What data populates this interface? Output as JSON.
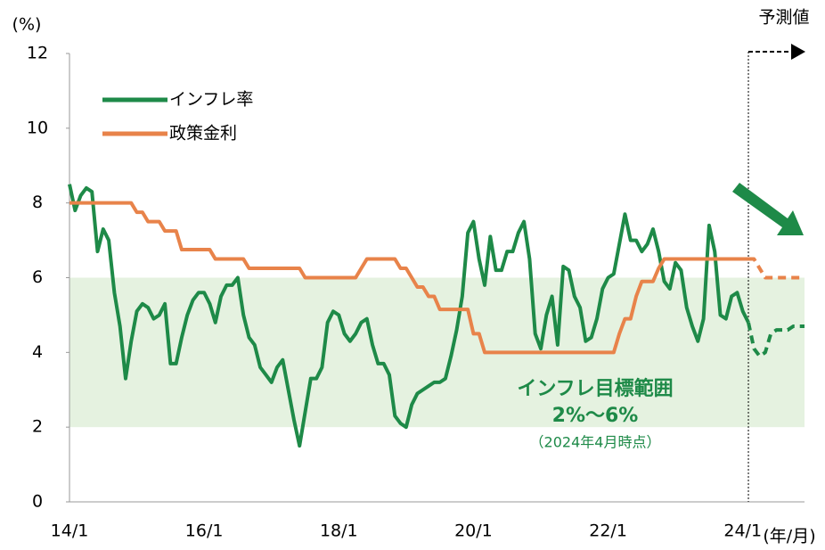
{
  "chart_data": {
    "type": "line",
    "y_unit": "(%)",
    "x_unit": "(年/月)",
    "annotations": {
      "forecast": "予測値",
      "band_title": "インフレ目標範囲",
      "band_range": "2%〜6%",
      "band_note": "（2024年4月時点）"
    },
    "band": [
      2,
      6
    ],
    "band_color": "#e5f2e0",
    "ylim": [
      0,
      12
    ],
    "yticks": [
      0,
      2,
      4,
      6,
      8,
      10,
      12
    ],
    "categories": [
      "14/1",
      null,
      null,
      null,
      null,
      null,
      null,
      null,
      null,
      null,
      null,
      null,
      null,
      null,
      null,
      null,
      null,
      null,
      null,
      null,
      null,
      null,
      null,
      null,
      "16/1",
      null,
      null,
      null,
      null,
      null,
      null,
      null,
      null,
      null,
      null,
      null,
      null,
      null,
      null,
      null,
      null,
      null,
      null,
      null,
      null,
      null,
      null,
      null,
      "18/1",
      null,
      null,
      null,
      null,
      null,
      null,
      null,
      null,
      null,
      null,
      null,
      null,
      null,
      null,
      null,
      null,
      null,
      null,
      null,
      null,
      null,
      null,
      null,
      "20/1",
      null,
      null,
      null,
      null,
      null,
      null,
      null,
      null,
      null,
      null,
      null,
      null,
      null,
      null,
      null,
      null,
      null,
      null,
      null,
      null,
      null,
      null,
      null,
      "22/1",
      null,
      null,
      null,
      null,
      null,
      null,
      null,
      null,
      null,
      null,
      null,
      null,
      null,
      null,
      null,
      null,
      null,
      null,
      null,
      null,
      null,
      null,
      null,
      "24/1",
      null,
      null,
      null,
      null,
      null,
      null,
      null,
      null,
      null,
      null,
      null
    ],
    "series": [
      {
        "name": "インフレ率",
        "color": "#1e8a48",
        "values": [
          8.5,
          7.8,
          8.2,
          8.4,
          8.3,
          6.7,
          7.3,
          7.0,
          5.6,
          4.7,
          3.3,
          4.3,
          5.1,
          5.3,
          5.2,
          4.9,
          5.0,
          5.3,
          3.7,
          3.7,
          4.4,
          5.0,
          5.4,
          5.6,
          5.6,
          5.3,
          4.8,
          5.5,
          5.8,
          5.8,
          6.0,
          5.0,
          4.4,
          4.2,
          3.6,
          3.4,
          3.2,
          3.6,
          3.8,
          3.0,
          2.2,
          1.5,
          2.4,
          3.3,
          3.3,
          3.6,
          4.8,
          5.1,
          5.0,
          4.5,
          4.3,
          4.5,
          4.8,
          4.9,
          4.2,
          3.7,
          3.7,
          3.4,
          2.3,
          2.1,
          2.0,
          2.6,
          2.9,
          3.0,
          3.1,
          3.2,
          3.2,
          3.3,
          3.9,
          4.6,
          5.5,
          7.2,
          7.5,
          6.5,
          5.8,
          7.1,
          6.2,
          6.2,
          6.7,
          6.7,
          7.2,
          7.5,
          6.5,
          4.5,
          4.1,
          5.0,
          5.5,
          4.2,
          6.3,
          6.2,
          5.5,
          5.2,
          4.3,
          4.4,
          4.9,
          5.7,
          6.0,
          6.1,
          6.9,
          7.7,
          7.0,
          7.0,
          6.7,
          6.9,
          7.3,
          6.7,
          5.9,
          5.7,
          6.4,
          6.2,
          5.2,
          4.7,
          4.3,
          4.9,
          7.4,
          6.7,
          5.0,
          4.9,
          5.5,
          5.6,
          5.1,
          4.8,
          null,
          null,
          null,
          null,
          null,
          null,
          null,
          null,
          null,
          null
        ],
        "forecast": [
          null,
          null,
          null,
          null,
          null,
          null,
          null,
          null,
          null,
          null,
          null,
          null,
          null,
          null,
          null,
          null,
          null,
          null,
          null,
          null,
          null,
          null,
          null,
          null,
          null,
          null,
          null,
          null,
          null,
          null,
          null,
          null,
          null,
          null,
          null,
          null,
          null,
          null,
          null,
          null,
          null,
          null,
          null,
          null,
          null,
          null,
          null,
          null,
          null,
          null,
          null,
          null,
          null,
          null,
          null,
          null,
          null,
          null,
          null,
          null,
          null,
          null,
          null,
          null,
          null,
          null,
          null,
          null,
          null,
          null,
          null,
          null,
          null,
          null,
          null,
          null,
          null,
          null,
          null,
          null,
          null,
          null,
          null,
          null,
          null,
          null,
          null,
          null,
          null,
          null,
          null,
          null,
          null,
          null,
          null,
          null,
          null,
          null,
          null,
          null,
          null,
          null,
          null,
          null,
          null,
          null,
          null,
          null,
          null,
          null,
          null,
          null,
          null,
          null,
          null,
          null,
          null,
          null,
          null,
          null,
          null,
          4.8,
          4.1,
          3.9,
          4.0,
          4.5,
          4.6,
          4.6,
          4.6,
          4.7,
          4.7,
          4.7
        ]
      },
      {
        "name": "政策金利",
        "color": "#e8834a",
        "values": [
          8,
          8,
          8,
          8,
          8,
          8,
          8,
          8,
          8,
          8,
          8,
          8,
          7.75,
          7.75,
          7.5,
          7.5,
          7.5,
          7.25,
          7.25,
          7.25,
          6.75,
          6.75,
          6.75,
          6.75,
          6.75,
          6.75,
          6.5,
          6.5,
          6.5,
          6.5,
          6.5,
          6.5,
          6.25,
          6.25,
          6.25,
          6.25,
          6.25,
          6.25,
          6.25,
          6.25,
          6.25,
          6.25,
          6,
          6,
          6,
          6,
          6,
          6,
          6,
          6,
          6,
          6,
          6.25,
          6.5,
          6.5,
          6.5,
          6.5,
          6.5,
          6.5,
          6.25,
          6.25,
          6,
          5.75,
          5.75,
          5.5,
          5.5,
          5.15,
          5.15,
          5.15,
          5.15,
          5.15,
          5.15,
          4.5,
          4.5,
          4,
          4,
          4,
          4,
          4,
          4,
          4,
          4,
          4,
          4,
          4,
          4,
          4,
          4,
          4,
          4,
          4,
          4,
          4,
          4,
          4,
          4,
          4,
          4,
          4.5,
          4.9,
          4.9,
          5.5,
          5.9,
          5.9,
          5.9,
          6.25,
          6.5,
          6.5,
          6.5,
          6.5,
          6.5,
          6.5,
          6.5,
          6.5,
          6.5,
          6.5,
          6.5,
          6.5,
          6.5,
          6.5,
          6.5,
          6.5,
          null,
          null,
          null,
          null,
          null,
          null,
          null,
          null,
          null,
          null
        ],
        "forecast": [
          null,
          null,
          null,
          null,
          null,
          null,
          null,
          null,
          null,
          null,
          null,
          null,
          null,
          null,
          null,
          null,
          null,
          null,
          null,
          null,
          null,
          null,
          null,
          null,
          null,
          null,
          null,
          null,
          null,
          null,
          null,
          null,
          null,
          null,
          null,
          null,
          null,
          null,
          null,
          null,
          null,
          null,
          null,
          null,
          null,
          null,
          null,
          null,
          null,
          null,
          null,
          null,
          null,
          null,
          null,
          null,
          null,
          null,
          null,
          null,
          null,
          null,
          null,
          null,
          null,
          null,
          null,
          null,
          null,
          null,
          null,
          null,
          null,
          null,
          null,
          null,
          null,
          null,
          null,
          null,
          null,
          null,
          null,
          null,
          null,
          null,
          null,
          null,
          null,
          null,
          null,
          null,
          null,
          null,
          null,
          null,
          null,
          null,
          null,
          null,
          null,
          null,
          null,
          null,
          null,
          null,
          null,
          null,
          null,
          null,
          null,
          null,
          null,
          null,
          null,
          null,
          null,
          null,
          null,
          null,
          null,
          6.5,
          6.5,
          6.25,
          6,
          6,
          6,
          6,
          6,
          6,
          6,
          6
        ]
      }
    ]
  }
}
